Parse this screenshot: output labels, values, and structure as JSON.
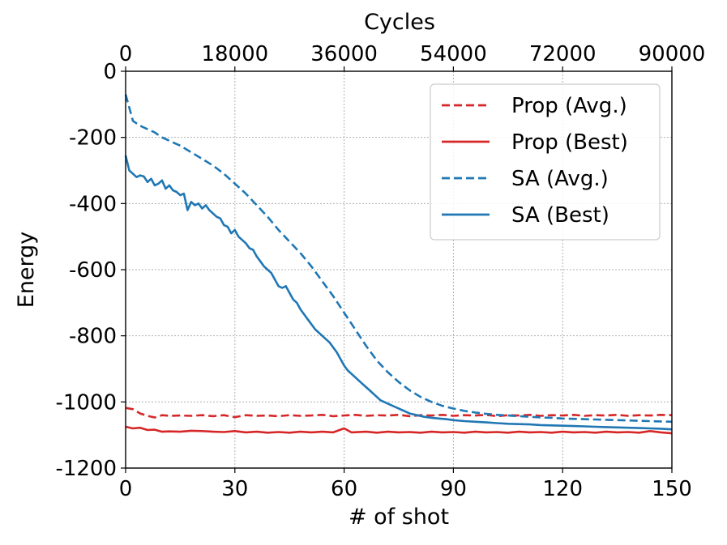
{
  "chart_data": {
    "type": "line",
    "xlabel": "# of shot",
    "ylabel": "Energy",
    "top_xlabel": "Cycles",
    "xlim": [
      0,
      150
    ],
    "ylim": [
      -1200,
      0
    ],
    "x_ticks": [
      "0",
      "30",
      "60",
      "90",
      "120",
      "150"
    ],
    "y_ticks": [
      "0",
      "-200",
      "-400",
      "-600",
      "-800",
      "-1000",
      "-1200"
    ],
    "top_x_ticks": [
      "0",
      "18000",
      "36000",
      "54000",
      "72000",
      "90000"
    ],
    "grid": true,
    "legend_position": "upper right",
    "colors": {
      "prop": "#d62728",
      "sa": "#1f77b4"
    },
    "series": [
      {
        "name": "Prop (Avg.)",
        "style": "dashed",
        "color": "#d62728",
        "points": [
          [
            0,
            -1018
          ],
          [
            2,
            -1022
          ],
          [
            4,
            -1035
          ],
          [
            6,
            -1042
          ],
          [
            8,
            -1047
          ],
          [
            10,
            -1040
          ],
          [
            12,
            -1042
          ],
          [
            15,
            -1041
          ],
          [
            18,
            -1042
          ],
          [
            21,
            -1040
          ],
          [
            24,
            -1043
          ],
          [
            27,
            -1040
          ],
          [
            30,
            -1046
          ],
          [
            33,
            -1040
          ],
          [
            36,
            -1042
          ],
          [
            39,
            -1041
          ],
          [
            42,
            -1043
          ],
          [
            45,
            -1040
          ],
          [
            48,
            -1042
          ],
          [
            51,
            -1041
          ],
          [
            54,
            -1039
          ],
          [
            57,
            -1043
          ],
          [
            60,
            -1041
          ],
          [
            63,
            -1039
          ],
          [
            66,
            -1042
          ],
          [
            69,
            -1040
          ],
          [
            72,
            -1041
          ],
          [
            75,
            -1039
          ],
          [
            78,
            -1043
          ],
          [
            81,
            -1040
          ],
          [
            84,
            -1041
          ],
          [
            87,
            -1039
          ],
          [
            90,
            -1042
          ],
          [
            93,
            -1040
          ],
          [
            96,
            -1041
          ],
          [
            99,
            -1039
          ],
          [
            102,
            -1043
          ],
          [
            105,
            -1040
          ],
          [
            108,
            -1041
          ],
          [
            111,
            -1039
          ],
          [
            114,
            -1042
          ],
          [
            117,
            -1040
          ],
          [
            120,
            -1041
          ],
          [
            123,
            -1039
          ],
          [
            126,
            -1042
          ],
          [
            129,
            -1040
          ],
          [
            132,
            -1041
          ],
          [
            135,
            -1039
          ],
          [
            138,
            -1042
          ],
          [
            141,
            -1040
          ],
          [
            144,
            -1041
          ],
          [
            147,
            -1039
          ],
          [
            150,
            -1040
          ]
        ]
      },
      {
        "name": "Prop (Best)",
        "style": "solid",
        "color": "#d62728",
        "points": [
          [
            0,
            -1075
          ],
          [
            2,
            -1080
          ],
          [
            4,
            -1078
          ],
          [
            6,
            -1085
          ],
          [
            8,
            -1084
          ],
          [
            10,
            -1090
          ],
          [
            12,
            -1089
          ],
          [
            15,
            -1090
          ],
          [
            18,
            -1087
          ],
          [
            21,
            -1088
          ],
          [
            24,
            -1090
          ],
          [
            27,
            -1091
          ],
          [
            30,
            -1088
          ],
          [
            33,
            -1092
          ],
          [
            36,
            -1090
          ],
          [
            39,
            -1093
          ],
          [
            42,
            -1091
          ],
          [
            45,
            -1093
          ],
          [
            48,
            -1090
          ],
          [
            51,
            -1092
          ],
          [
            54,
            -1090
          ],
          [
            57,
            -1092
          ],
          [
            60,
            -1080
          ],
          [
            62,
            -1092
          ],
          [
            66,
            -1090
          ],
          [
            69,
            -1093
          ],
          [
            72,
            -1090
          ],
          [
            75,
            -1092
          ],
          [
            78,
            -1091
          ],
          [
            81,
            -1093
          ],
          [
            84,
            -1090
          ],
          [
            87,
            -1092
          ],
          [
            90,
            -1091
          ],
          [
            93,
            -1093
          ],
          [
            96,
            -1090
          ],
          [
            99,
            -1092
          ],
          [
            102,
            -1091
          ],
          [
            105,
            -1093
          ],
          [
            108,
            -1090
          ],
          [
            111,
            -1092
          ],
          [
            114,
            -1091
          ],
          [
            117,
            -1093
          ],
          [
            120,
            -1090
          ],
          [
            123,
            -1092
          ],
          [
            126,
            -1091
          ],
          [
            129,
            -1093
          ],
          [
            132,
            -1090
          ],
          [
            135,
            -1092
          ],
          [
            138,
            -1091
          ],
          [
            141,
            -1093
          ],
          [
            144,
            -1088
          ],
          [
            147,
            -1092
          ],
          [
            150,
            -1095
          ]
        ]
      },
      {
        "name": "SA (Avg.)",
        "style": "dashed",
        "color": "#1f77b4",
        "points": [
          [
            0,
            -70
          ],
          [
            1,
            -110
          ],
          [
            2,
            -150
          ],
          [
            4,
            -165
          ],
          [
            6,
            -175
          ],
          [
            8,
            -185
          ],
          [
            10,
            -200
          ],
          [
            12,
            -210
          ],
          [
            15,
            -225
          ],
          [
            18,
            -245
          ],
          [
            21,
            -265
          ],
          [
            24,
            -285
          ],
          [
            27,
            -310
          ],
          [
            30,
            -340
          ],
          [
            33,
            -370
          ],
          [
            36,
            -405
          ],
          [
            39,
            -440
          ],
          [
            42,
            -480
          ],
          [
            45,
            -515
          ],
          [
            48,
            -550
          ],
          [
            51,
            -590
          ],
          [
            54,
            -635
          ],
          [
            57,
            -680
          ],
          [
            60,
            -730
          ],
          [
            63,
            -780
          ],
          [
            66,
            -830
          ],
          [
            69,
            -875
          ],
          [
            72,
            -910
          ],
          [
            75,
            -940
          ],
          [
            78,
            -965
          ],
          [
            81,
            -985
          ],
          [
            84,
            -1000
          ],
          [
            87,
            -1012
          ],
          [
            90,
            -1020
          ],
          [
            93,
            -1027
          ],
          [
            96,
            -1032
          ],
          [
            99,
            -1036
          ],
          [
            102,
            -1039
          ],
          [
            105,
            -1041
          ],
          [
            108,
            -1043
          ],
          [
            111,
            -1045
          ],
          [
            114,
            -1047
          ],
          [
            117,
            -1048
          ],
          [
            120,
            -1050
          ],
          [
            123,
            -1051
          ],
          [
            126,
            -1052
          ],
          [
            129,
            -1053
          ],
          [
            132,
            -1054
          ],
          [
            135,
            -1055
          ],
          [
            138,
            -1056
          ],
          [
            141,
            -1057
          ],
          [
            144,
            -1058
          ],
          [
            147,
            -1059
          ],
          [
            150,
            -1060
          ]
        ]
      },
      {
        "name": "SA (Best)",
        "style": "solid",
        "color": "#1f77b4",
        "points": [
          [
            0,
            -255
          ],
          [
            1,
            -300
          ],
          [
            2,
            -310
          ],
          [
            3,
            -320
          ],
          [
            4,
            -315
          ],
          [
            5,
            -318
          ],
          [
            6,
            -335
          ],
          [
            7,
            -325
          ],
          [
            8,
            -345
          ],
          [
            9,
            -340
          ],
          [
            10,
            -330
          ],
          [
            11,
            -355
          ],
          [
            12,
            -345
          ],
          [
            13,
            -360
          ],
          [
            14,
            -365
          ],
          [
            15,
            -375
          ],
          [
            16,
            -370
          ],
          [
            17,
            -420
          ],
          [
            18,
            -395
          ],
          [
            19,
            -405
          ],
          [
            20,
            -400
          ],
          [
            21,
            -415
          ],
          [
            22,
            -405
          ],
          [
            23,
            -420
          ],
          [
            24,
            -430
          ],
          [
            25,
            -440
          ],
          [
            26,
            -445
          ],
          [
            27,
            -465
          ],
          [
            28,
            -470
          ],
          [
            29,
            -490
          ],
          [
            30,
            -480
          ],
          [
            31,
            -500
          ],
          [
            32,
            -510
          ],
          [
            33,
            -520
          ],
          [
            34,
            -535
          ],
          [
            35,
            -540
          ],
          [
            36,
            -560
          ],
          [
            37,
            -575
          ],
          [
            38,
            -590
          ],
          [
            39,
            -600
          ],
          [
            40,
            -610
          ],
          [
            41,
            -630
          ],
          [
            42,
            -650
          ],
          [
            43,
            -655
          ],
          [
            44,
            -650
          ],
          [
            45,
            -670
          ],
          [
            46,
            -690
          ],
          [
            47,
            -700
          ],
          [
            48,
            -720
          ],
          [
            49,
            -735
          ],
          [
            50,
            -750
          ],
          [
            51,
            -765
          ],
          [
            52,
            -780
          ],
          [
            53,
            -790
          ],
          [
            54,
            -800
          ],
          [
            55,
            -810
          ],
          [
            56,
            -820
          ],
          [
            57,
            -835
          ],
          [
            58,
            -850
          ],
          [
            59,
            -870
          ],
          [
            60,
            -890
          ],
          [
            61,
            -905
          ],
          [
            62,
            -915
          ],
          [
            63,
            -925
          ],
          [
            64,
            -935
          ],
          [
            65,
            -945
          ],
          [
            66,
            -955
          ],
          [
            67,
            -965
          ],
          [
            68,
            -975
          ],
          [
            69,
            -985
          ],
          [
            70,
            -995
          ],
          [
            72,
            -1005
          ],
          [
            74,
            -1015
          ],
          [
            76,
            -1025
          ],
          [
            78,
            -1035
          ],
          [
            80,
            -1040
          ],
          [
            82,
            -1045
          ],
          [
            84,
            -1048
          ],
          [
            86,
            -1050
          ],
          [
            88,
            -1052
          ],
          [
            90,
            -1055
          ],
          [
            93,
            -1058
          ],
          [
            96,
            -1060
          ],
          [
            99,
            -1062
          ],
          [
            102,
            -1064
          ],
          [
            105,
            -1066
          ],
          [
            108,
            -1067
          ],
          [
            111,
            -1068
          ],
          [
            114,
            -1070
          ],
          [
            117,
            -1071
          ],
          [
            120,
            -1072
          ],
          [
            123,
            -1073
          ],
          [
            126,
            -1074
          ],
          [
            129,
            -1075
          ],
          [
            132,
            -1076
          ],
          [
            135,
            -1077
          ],
          [
            138,
            -1078
          ],
          [
            141,
            -1079
          ],
          [
            144,
            -1080
          ],
          [
            147,
            -1081
          ],
          [
            150,
            -1083
          ]
        ]
      }
    ]
  }
}
